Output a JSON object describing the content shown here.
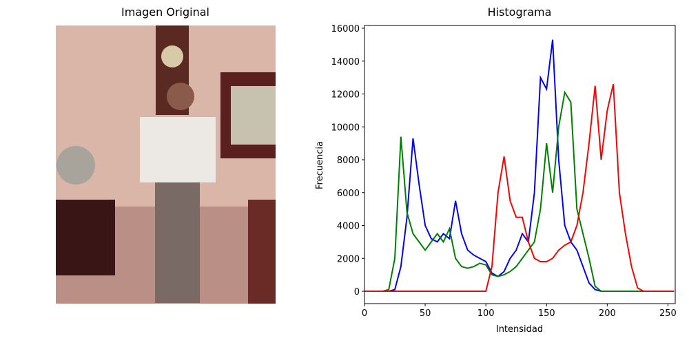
{
  "image": {
    "title": "Imagen Original"
  },
  "chart_data": {
    "type": "line",
    "title": "Histograma",
    "x_label": "Intensidad",
    "y_label": "Frecuencia",
    "x": [
      0,
      5,
      10,
      15,
      20,
      25,
      30,
      35,
      40,
      45,
      50,
      55,
      60,
      65,
      70,
      75,
      80,
      85,
      90,
      95,
      100,
      105,
      110,
      115,
      120,
      125,
      130,
      135,
      140,
      145,
      150,
      155,
      160,
      165,
      170,
      175,
      180,
      185,
      190,
      195,
      200,
      205,
      210,
      215,
      220,
      225,
      230,
      235,
      240,
      245,
      250,
      255
    ],
    "series": [
      {
        "name": "b",
        "color": "#0000ff",
        "values": [
          0,
          0,
          0,
          0,
          0,
          100,
          1500,
          4500,
          9300,
          6500,
          4000,
          3200,
          3000,
          3500,
          3200,
          5500,
          3500,
          2500,
          2200,
          2000,
          1800,
          1100,
          900,
          1200,
          2000,
          2500,
          3500,
          3000,
          6000,
          13000,
          12300,
          15300,
          8000,
          4000,
          3000,
          2500,
          1500,
          500,
          100,
          0,
          0,
          0,
          0,
          0,
          0,
          0,
          0,
          0,
          0,
          0,
          0,
          0
        ]
      },
      {
        "name": "g",
        "color": "#008000",
        "values": [
          0,
          0,
          0,
          0,
          100,
          2000,
          9400,
          4800,
          3500,
          3000,
          2500,
          3000,
          3500,
          3000,
          3800,
          2000,
          1500,
          1400,
          1500,
          1700,
          1600,
          1000,
          900,
          1000,
          1200,
          1500,
          2000,
          2500,
          3000,
          5000,
          9000,
          6000,
          10000,
          12100,
          11500,
          5000,
          3500,
          2000,
          300,
          0,
          0,
          0,
          0,
          0,
          0,
          0,
          0,
          0,
          0,
          0,
          0,
          0
        ]
      },
      {
        "name": "r",
        "color": "#ff0000",
        "values": [
          0,
          0,
          0,
          0,
          0,
          0,
          0,
          0,
          0,
          0,
          0,
          0,
          0,
          0,
          0,
          0,
          0,
          0,
          0,
          0,
          0,
          1500,
          6000,
          8200,
          5500,
          4500,
          4500,
          3000,
          2000,
          1800,
          1800,
          2000,
          2500,
          2800,
          3000,
          4000,
          6000,
          9000,
          12500,
          8000,
          11000,
          12600,
          6000,
          3500,
          1500,
          200,
          0,
          0,
          0,
          0,
          0,
          0
        ]
      }
    ],
    "xlim": [
      0,
      256
    ],
    "ylim": [
      -754,
      16168
    ],
    "xticks": [
      0,
      50,
      100,
      150,
      200,
      250
    ],
    "yticks": [
      0,
      2000,
      4000,
      6000,
      8000,
      10000,
      12000,
      14000,
      16000
    ]
  }
}
